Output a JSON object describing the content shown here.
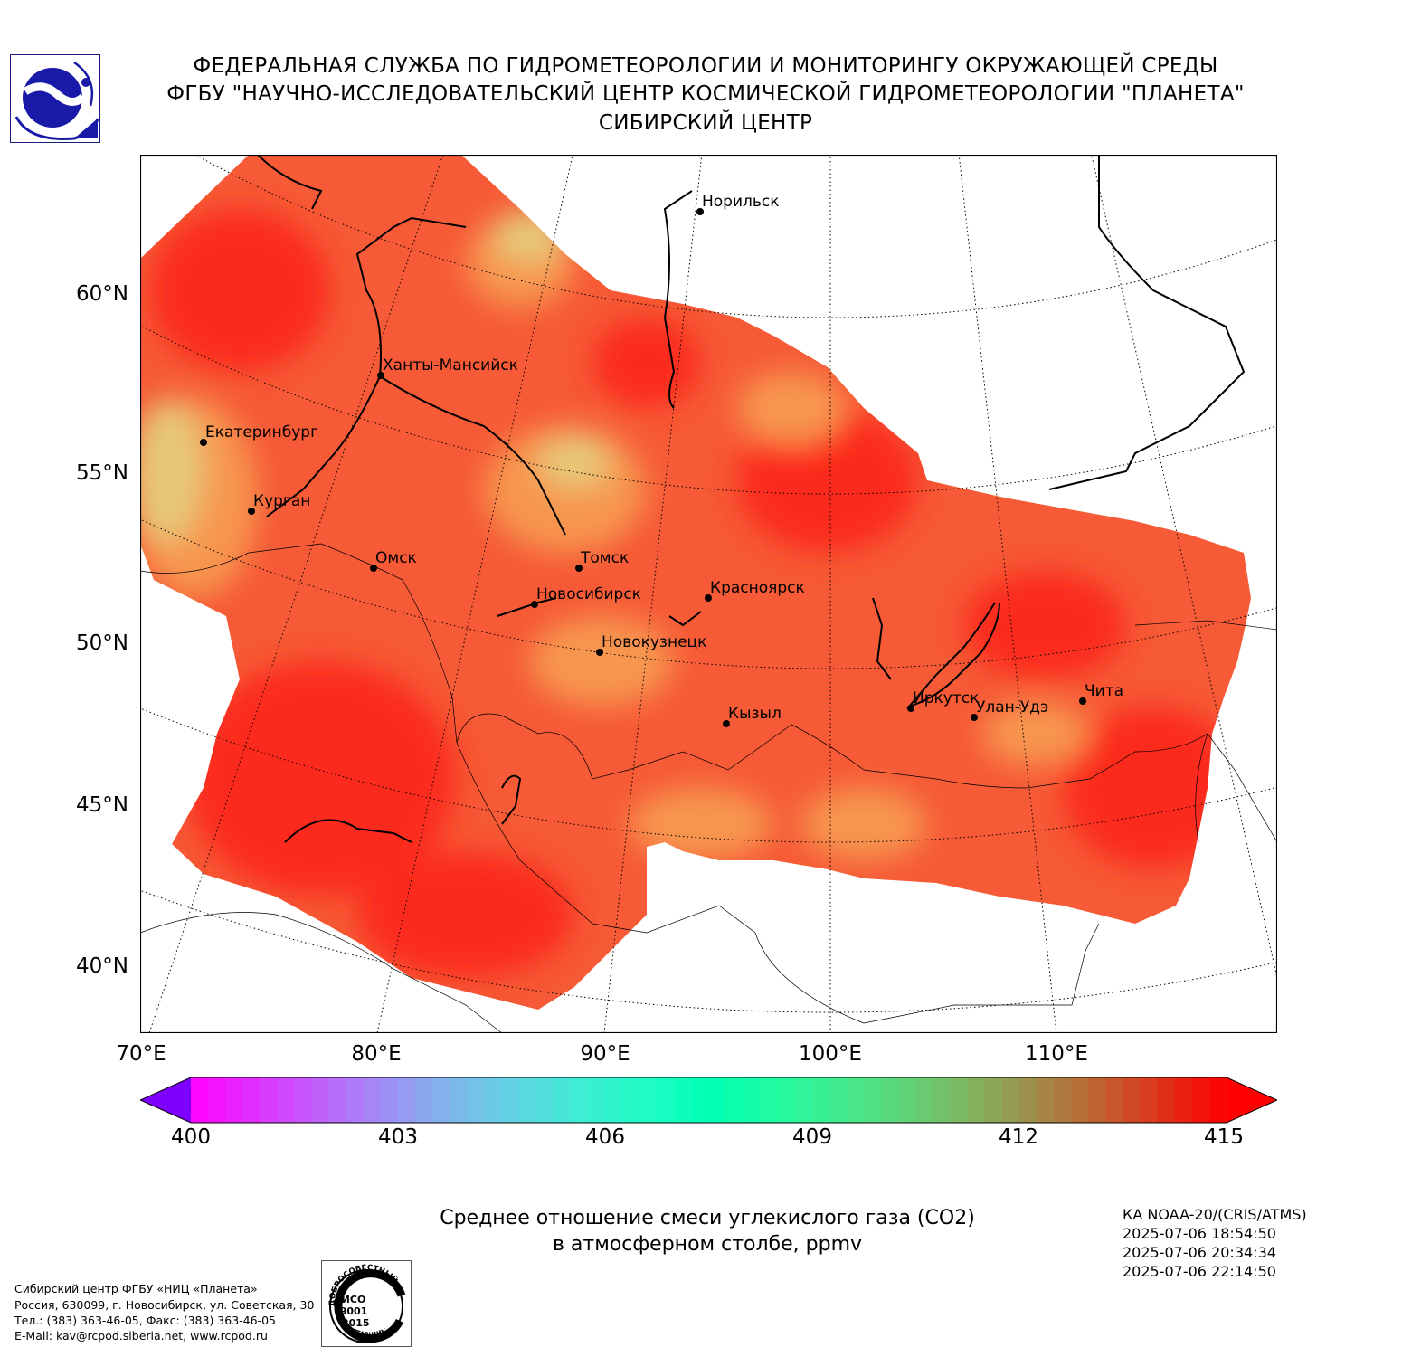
{
  "header": {
    "line1": "ФЕДЕРАЛЬНАЯ СЛУЖБА ПО ГИДРОМЕТЕОРОЛОГИИ И МОНИТОРИНГУ ОКРУЖАЮЩЕЙ СРЕДЫ",
    "line2": "ФГБУ \"НАУЧНО-ИССЛЕДОВАТЕЛЬСКИЙ ЦЕНТР КОСМИЧЕСКОЙ ГИДРОМЕТЕОРОЛОГИИ \"ПЛАНЕТА\"",
    "line3": "СИБИРСКИЙ ЦЕНТР"
  },
  "map": {
    "lat_labels": [
      "60°N",
      "55°N",
      "50°N",
      "45°N",
      "40°N"
    ],
    "lon_labels": [
      "70°E",
      "80°E",
      "90°E",
      "100°E",
      "110°E"
    ],
    "cities": [
      {
        "name": "Норильск"
      },
      {
        "name": "Ханты-Мансийск"
      },
      {
        "name": "Екатеринбург"
      },
      {
        "name": "Курган"
      },
      {
        "name": "Омск"
      },
      {
        "name": "Томск"
      },
      {
        "name": "Новосибирск"
      },
      {
        "name": "Красноярск"
      },
      {
        "name": "Новокузнецк"
      },
      {
        "name": "Иркутск"
      },
      {
        "name": "Улан-Удэ"
      },
      {
        "name": "Чита"
      },
      {
        "name": "Кызыл"
      }
    ],
    "field_colors": {
      "high": "#fb2a1b",
      "mid": "#f65a36",
      "low": "#f7964f",
      "lowest": "#e6c878"
    }
  },
  "colorbar": {
    "ticks": [
      "400",
      "403",
      "406",
      "409",
      "412",
      "415"
    ],
    "min": 400,
    "max": 415,
    "extend": "both",
    "colormap": "rainbow (purple to red)"
  },
  "caption": {
    "line1": "Среднее отношение смеси углекислого газа (CO2)",
    "line2": "в атмосферном столбе, ppmv"
  },
  "satellite": {
    "name": "КА NOAA-20/(CRIS/ATMS)",
    "times": [
      "2025-07-06 18:54:50",
      "2025-07-06 20:34:34",
      "2025-07-06 22:14:50"
    ]
  },
  "footer": {
    "line1": "Сибирский центр ФГБУ «НИЦ «Планета»",
    "line2": "Россия, 630099, г. Новосибирск, ул. Советская, 30",
    "line3": "Тел.: (383) 363-46-05, Факс: (383) 363-46-05",
    "line4": "E-Mail: kav@rcpod.siberia.net, www.rcpod.ru"
  },
  "iso_badge": {
    "top_text": "ДОБРОСОВЕСТНЫЙ",
    "center_text_1": "ИСО",
    "center_text_2": "9001",
    "center_text_3": "-2015",
    "bottom_text": "ПОСТАВЩИК"
  }
}
